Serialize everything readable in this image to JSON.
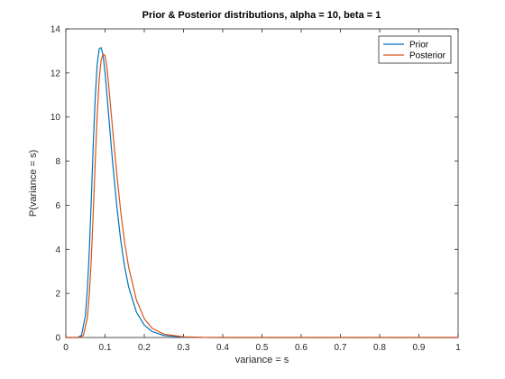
{
  "chart_data": {
    "type": "line",
    "title": "Prior & Posterior distributions, alpha = 10, beta = 1",
    "xlabel": "variance = s",
    "ylabel": "P(variance = s)",
    "xlim": [
      0,
      1
    ],
    "ylim": [
      0,
      14
    ],
    "xticks": [
      0,
      0.1,
      0.2,
      0.3,
      0.4,
      0.5,
      0.6,
      0.7,
      0.8,
      0.9,
      1
    ],
    "xtick_labels": [
      "0",
      "0.1",
      "0.2",
      "0.3",
      "0.4",
      "0.5",
      "0.6",
      "0.7",
      "0.8",
      "0.9",
      "1"
    ],
    "yticks": [
      0,
      2,
      4,
      6,
      8,
      10,
      12,
      14
    ],
    "ytick_labels": [
      "0",
      "2",
      "4",
      "6",
      "8",
      "10",
      "12",
      "14"
    ],
    "grid": false,
    "legend_position": "top-right",
    "series": [
      {
        "name": "Prior",
        "color": "#0072BD",
        "x": [
          0,
          0.03,
          0.04,
          0.05,
          0.055,
          0.06,
          0.065,
          0.07,
          0.075,
          0.08,
          0.085,
          0.09,
          0.095,
          0.1,
          0.105,
          0.11,
          0.12,
          0.13,
          0.14,
          0.15,
          0.16,
          0.18,
          0.2,
          0.22,
          0.25,
          0.3,
          0.35,
          0.4,
          0.5,
          1
        ],
        "y": [
          0,
          0,
          0.1,
          1.0,
          2.2,
          4.0,
          6.3,
          8.8,
          10.9,
          12.4,
          13.1,
          13.15,
          12.8,
          12.0,
          11.0,
          9.9,
          7.8,
          5.95,
          4.4,
          3.2,
          2.3,
          1.15,
          0.56,
          0.27,
          0.09,
          0.015,
          0.002,
          0,
          0,
          0
        ]
      },
      {
        "name": "Posterior",
        "color": "#D95319",
        "x": [
          0,
          0.035,
          0.045,
          0.055,
          0.06,
          0.065,
          0.07,
          0.075,
          0.08,
          0.085,
          0.09,
          0.095,
          0.1,
          0.105,
          0.11,
          0.115,
          0.12,
          0.13,
          0.14,
          0.15,
          0.16,
          0.18,
          0.2,
          0.22,
          0.25,
          0.3,
          0.35,
          0.4,
          0.5,
          1
        ],
        "y": [
          0,
          0,
          0.1,
          0.9,
          2.0,
          3.6,
          5.7,
          8.0,
          10.1,
          11.7,
          12.6,
          12.85,
          12.8,
          12.2,
          11.3,
          10.3,
          9.3,
          7.4,
          5.7,
          4.3,
          3.2,
          1.7,
          0.85,
          0.42,
          0.15,
          0.03,
          0.005,
          0,
          0,
          0
        ]
      }
    ]
  }
}
